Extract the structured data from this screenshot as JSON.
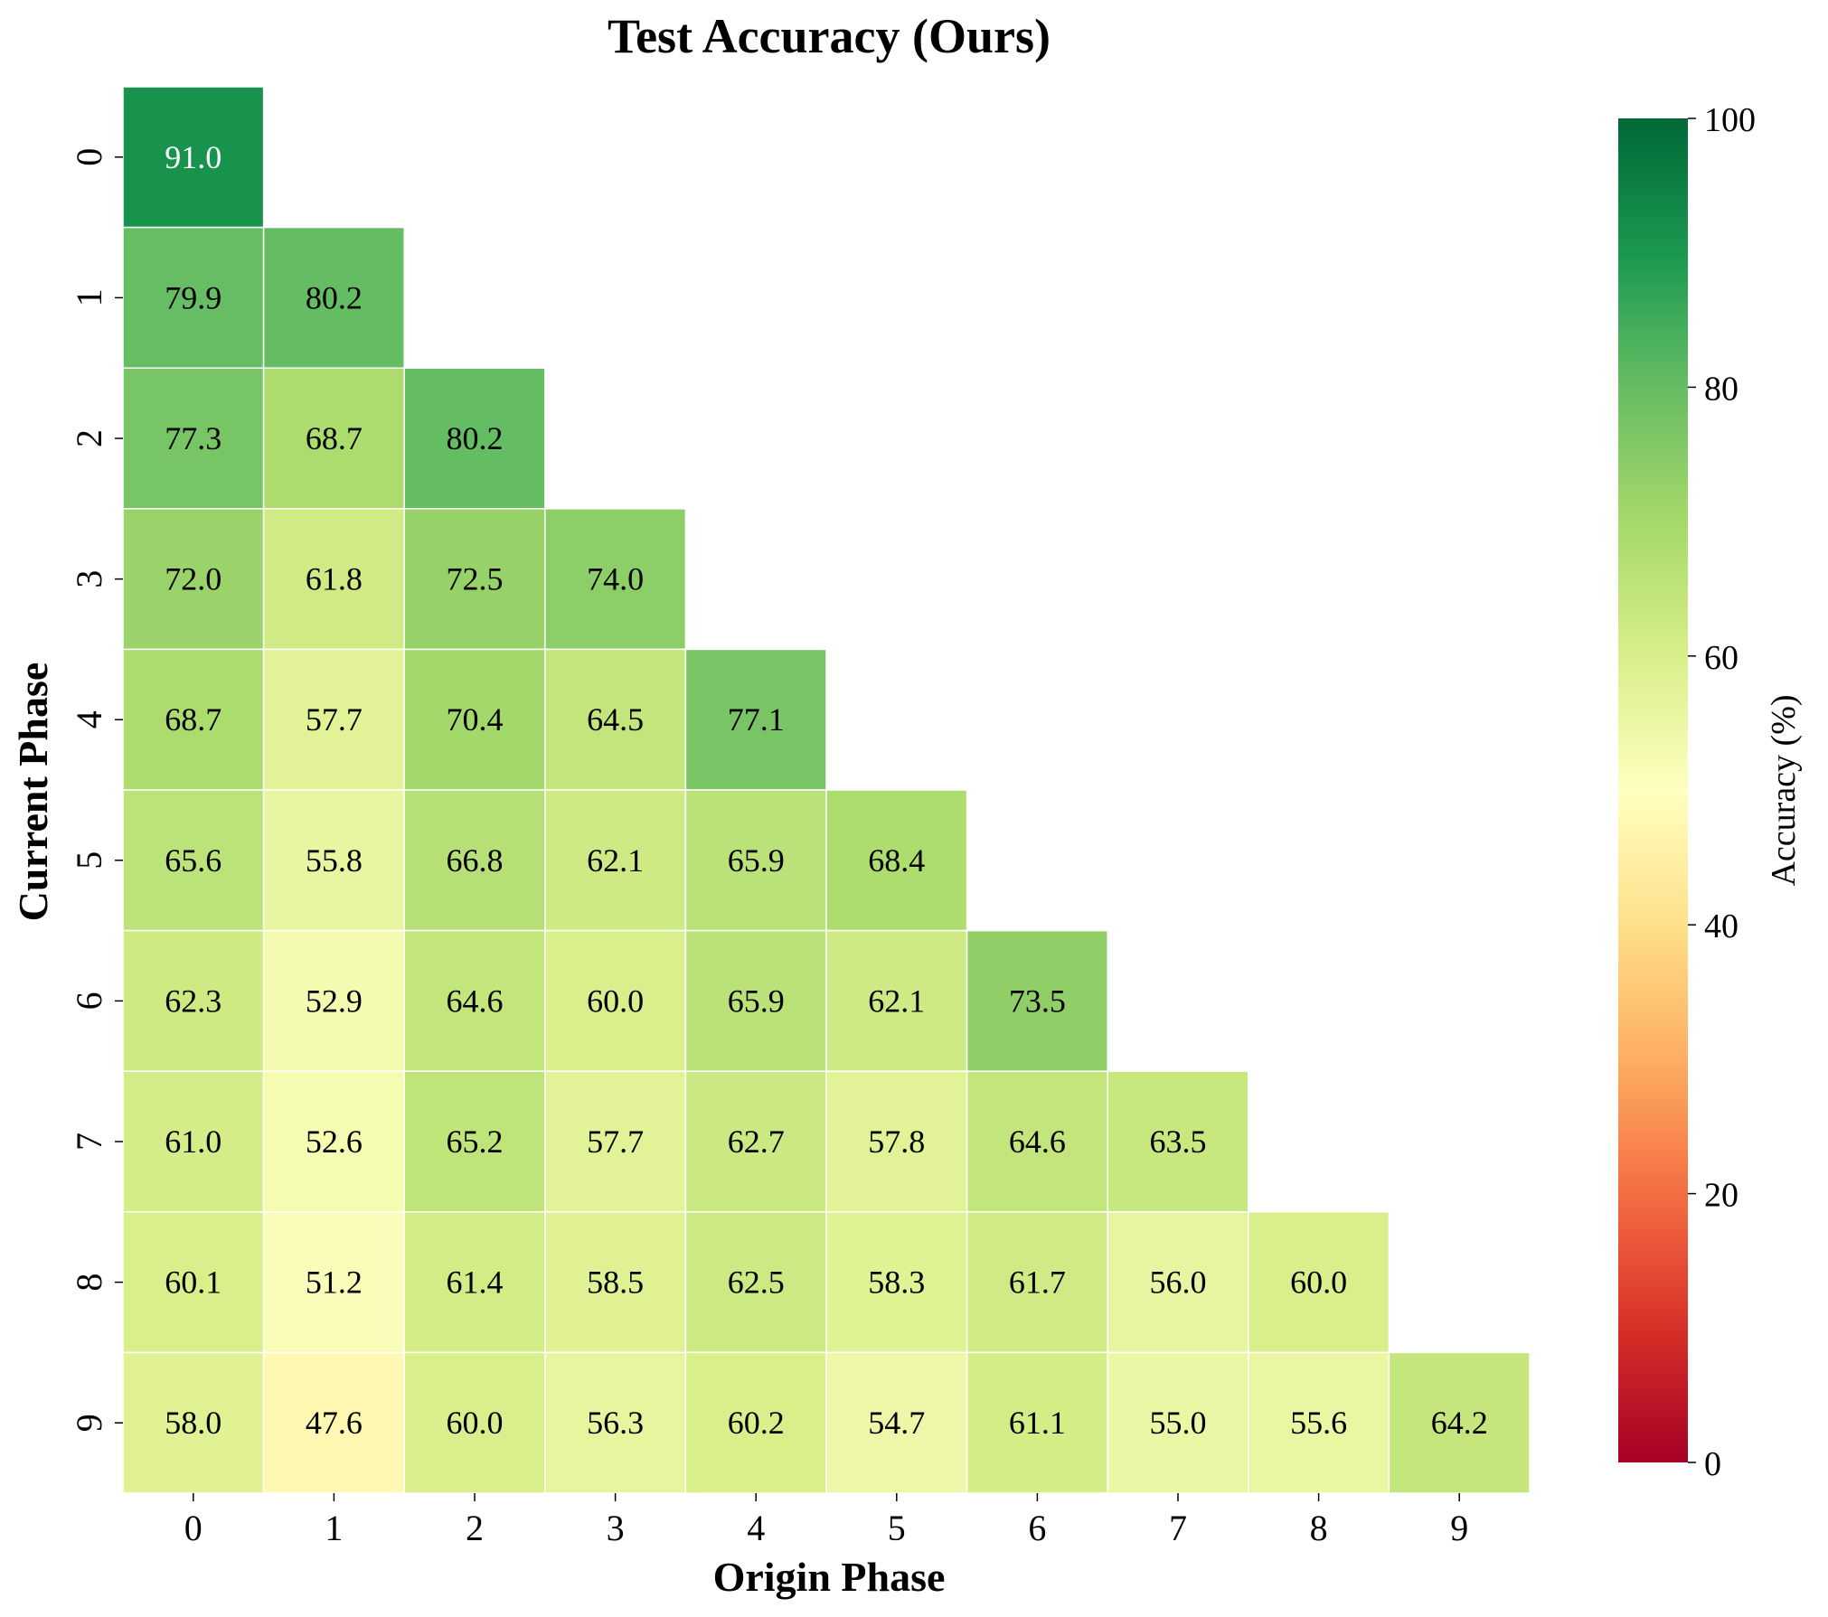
{
  "chart_data": {
    "type": "heatmap",
    "title": "Test Accuracy (Ours)",
    "xlabel": "Origin Phase",
    "ylabel": "Current Phase",
    "x_categories": [
      "0",
      "1",
      "2",
      "3",
      "4",
      "5",
      "6",
      "7",
      "8",
      "9"
    ],
    "y_categories": [
      "0",
      "1",
      "2",
      "3",
      "4",
      "5",
      "6",
      "7",
      "8",
      "9"
    ],
    "values": [
      [
        91.0
      ],
      [
        79.9,
        80.2
      ],
      [
        77.3,
        68.7,
        80.2
      ],
      [
        72.0,
        61.8,
        72.5,
        74.0
      ],
      [
        68.7,
        57.7,
        70.4,
        64.5,
        77.1
      ],
      [
        65.6,
        55.8,
        66.8,
        62.1,
        65.9,
        68.4
      ],
      [
        62.3,
        52.9,
        64.6,
        60.0,
        65.9,
        62.1,
        73.5
      ],
      [
        61.0,
        52.6,
        65.2,
        57.7,
        62.7,
        57.8,
        64.6,
        63.5
      ],
      [
        60.1,
        51.2,
        61.4,
        58.5,
        62.5,
        58.3,
        61.7,
        56.0,
        60.0
      ],
      [
        58.0,
        47.6,
        60.0,
        56.3,
        60.2,
        54.7,
        61.1,
        55.0,
        55.6,
        64.2
      ]
    ],
    "mask": "upper-triangle",
    "colormap": "RdYlGn",
    "vmin": 0,
    "vmax": 100,
    "colorbar": {
      "label": "Accuracy (%)",
      "ticks": [
        0,
        20,
        40,
        60,
        80,
        100
      ]
    },
    "grid": false
  }
}
